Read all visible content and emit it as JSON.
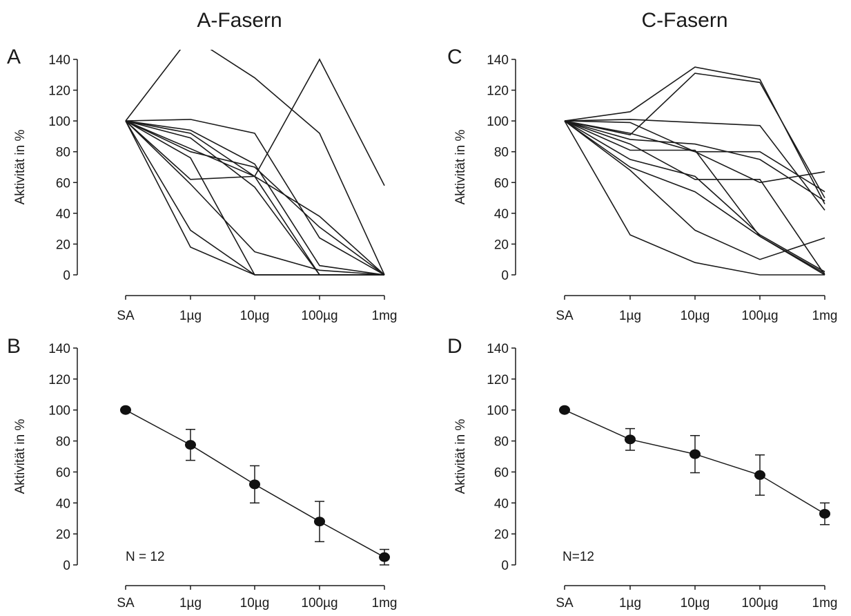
{
  "columns": [
    "A-Fasern",
    "C-Fasern"
  ],
  "colors": {
    "ink": "#1a1a1a",
    "marker": "#111111"
  },
  "chart_data": [
    {
      "panel": "A",
      "column": 0,
      "row": 0,
      "type": "line",
      "categories": [
        "SA",
        "1µg",
        "10µg",
        "100µg",
        "1mg"
      ],
      "ylabel": "Aktivität in %",
      "yticks": [
        0,
        20,
        40,
        60,
        80,
        100,
        120,
        140
      ],
      "ylim": [
        0,
        140
      ],
      "grid": false,
      "note": "",
      "series": [
        {
          "values": [
            100,
            101,
            92,
            24,
            0
          ]
        },
        {
          "values": [
            100,
            94,
            72,
            6,
            0
          ]
        },
        {
          "values": [
            100,
            92,
            64,
            0,
            0
          ]
        },
        {
          "values": [
            100,
            89,
            57,
            0,
            0
          ]
        },
        {
          "values": [
            100,
            82,
            64,
            38,
            0
          ]
        },
        {
          "values": [
            100,
            80,
            70,
            31,
            0
          ]
        },
        {
          "values": [
            100,
            76,
            0,
            0,
            0
          ]
        },
        {
          "values": [
            100,
            62,
            64,
            140,
            58
          ]
        },
        {
          "values": [
            100,
            59,
            15,
            3,
            0
          ]
        },
        {
          "values": [
            100,
            29,
            0,
            0,
            0
          ]
        },
        {
          "values": [
            100,
            18,
            0,
            0,
            0
          ]
        },
        {
          "values": [
            100,
            155,
            128,
            92,
            0
          ]
        }
      ]
    },
    {
      "panel": "B",
      "column": 0,
      "row": 1,
      "type": "line",
      "categories": [
        "SA",
        "1µg",
        "10µg",
        "100µg",
        "1mg"
      ],
      "ylabel": "Aktivität in %",
      "yticks": [
        0,
        20,
        40,
        60,
        80,
        100,
        120,
        140
      ],
      "ylim": [
        0,
        140
      ],
      "grid": false,
      "note": "N = 12",
      "series": [
        {
          "values": [
            100,
            77.5,
            52,
            28,
            5
          ],
          "errors": [
            0,
            10,
            12,
            13,
            5
          ]
        }
      ]
    },
    {
      "panel": "C",
      "column": 1,
      "row": 0,
      "type": "line",
      "categories": [
        "SA",
        "1µg",
        "10µg",
        "100µg",
        "1mg"
      ],
      "ylabel": "Aktivität in %",
      "yticks": [
        0,
        20,
        40,
        60,
        80,
        100,
        120,
        140
      ],
      "ylim": [
        0,
        140
      ],
      "grid": false,
      "note": "",
      "series": [
        {
          "values": [
            100,
            106,
            135,
            127,
            46
          ]
        },
        {
          "values": [
            100,
            91,
            131,
            125,
            50
          ]
        },
        {
          "values": [
            100,
            101,
            99,
            97,
            42
          ]
        },
        {
          "values": [
            100,
            99,
            80,
            60,
            67
          ]
        },
        {
          "values": [
            100,
            92,
            80,
            80,
            54
          ]
        },
        {
          "values": [
            100,
            88,
            85,
            75,
            48
          ]
        },
        {
          "values": [
            100,
            85,
            62,
            62,
            0
          ]
        },
        {
          "values": [
            100,
            81,
            81,
            25,
            0
          ]
        },
        {
          "values": [
            100,
            75,
            64,
            26,
            2
          ]
        },
        {
          "values": [
            100,
            70,
            54,
            25,
            1
          ]
        },
        {
          "values": [
            100,
            68,
            29,
            10,
            24
          ]
        },
        {
          "values": [
            100,
            26,
            8,
            0,
            0
          ]
        }
      ]
    },
    {
      "panel": "D",
      "column": 1,
      "row": 1,
      "type": "line",
      "categories": [
        "SA",
        "1µg",
        "10µg",
        "100µg",
        "1mg"
      ],
      "ylabel": "Aktivität in %",
      "yticks": [
        0,
        20,
        40,
        60,
        80,
        100,
        120,
        140
      ],
      "ylim": [
        0,
        140
      ],
      "grid": false,
      "note": "N=12",
      "series": [
        {
          "values": [
            100,
            81,
            71.5,
            58,
            33
          ],
          "errors": [
            0,
            7,
            12,
            13,
            7
          ]
        }
      ]
    }
  ]
}
